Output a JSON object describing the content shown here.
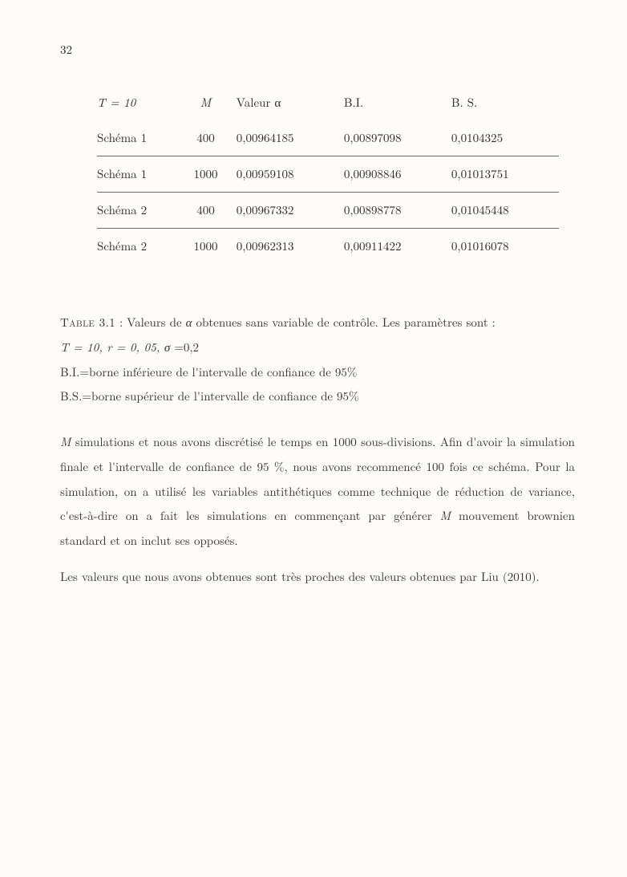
{
  "page_number": "32",
  "table": {
    "headers": {
      "scheme": "T = 10",
      "m": "M",
      "val": "Valeur α",
      "bi": "B.I.",
      "bs": "B. S."
    },
    "rows": [
      {
        "scheme": "Schéma 1",
        "m": "400",
        "val": "0,00964185",
        "bi": "0,00897098",
        "bs": "0,0104325"
      },
      {
        "scheme": "Schéma 1",
        "m": "1000",
        "val": "0,00959108",
        "bi": "0,00908846",
        "bs": "0,01013751"
      },
      {
        "scheme": "Schéma 2",
        "m": "400",
        "val": "0,00967332",
        "bi": "0,00898778",
        "bs": "0,01045448"
      },
      {
        "scheme": "Schéma 2",
        "m": "1000",
        "val": "0,00962313",
        "bi": "0,00911422",
        "bs": "0,01016078"
      }
    ]
  },
  "caption": {
    "label": "Table 3.1",
    "line1_pre": " : Valeurs de ",
    "alpha": "α",
    "line1_post": " obtenues sans variable de contrôle. Les paramètres sont  :",
    "line2_pre": "T = 10, r = 0, 05, ",
    "sigma": "σ",
    "line2_post": " =0,2",
    "line3": "B.I.=borne inférieure de l'intervalle de confiance de 95%",
    "line4": "B.S.=borne supérieur de l'intervalle de confiance de 95%"
  },
  "para1": {
    "m": "M",
    "t1": " simulations et nous avons discrétisé le temps en 1000 sous-divisions. Afin d'avoir la simulation finale et l'intervalle de confiance de 95 %, nous avons recommencé 100 fois ce schéma. Pour la simulation, on a utilisé les variables antithétiques comme technique de réduction de variance, c'est-à-dire on a fait les simulations en commençant par générer ",
    "m2": "M",
    "t2": " mouvement brownien standard et on inclut ses opposés."
  },
  "para2": "Les valeurs que nous avons obtenues sont très proches des valeurs obtenues par Liu (2010)."
}
